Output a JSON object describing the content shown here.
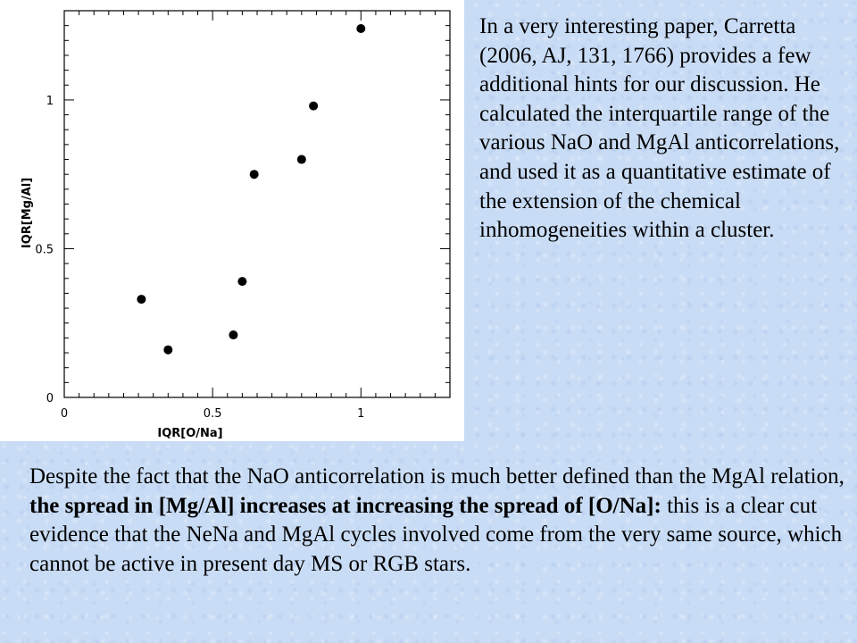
{
  "side_paragraph": "In a very interesting paper, Carretta (2006, AJ, 131, 1766) provides a few additional hints for our discussion.  He calculated the interquartile range of the various NaO and MgAl anticorrelations, and used it as a quantitative estimate of the extension of the chemical inhomogeneities within a cluster.",
  "bottom_paragraph": {
    "part1": "Despite the fact that the NaO anticorrelation is much better defined than the MgAl relation, ",
    "bold": "the spread in [Mg/Al] increases at increasing the spread of [O/Na]:",
    "part2": " this is a clear cut evidence that the NeNa and MgAl cycles involved come from the very same source, which cannot be active in present day MS or RGB stars."
  },
  "chart_data": {
    "type": "scatter",
    "xlabel": "IQR[O/Na]",
    "ylabel": "IQR[Mg/Al]",
    "xlim": [
      0,
      1.3
    ],
    "ylim": [
      0,
      1.3
    ],
    "x_ticks": [
      0,
      0.5,
      1
    ],
    "x_tick_labels": [
      "0",
      "0.5",
      "1"
    ],
    "y_ticks": [
      0,
      0.5,
      1
    ],
    "y_tick_labels": [
      "0",
      "0.5",
      "1"
    ],
    "grid": false,
    "points": [
      {
        "x": 0.26,
        "y": 0.33
      },
      {
        "x": 0.35,
        "y": 0.16
      },
      {
        "x": 0.57,
        "y": 0.21
      },
      {
        "x": 0.6,
        "y": 0.39
      },
      {
        "x": 0.64,
        "y": 0.75
      },
      {
        "x": 0.8,
        "y": 0.8
      },
      {
        "x": 0.84,
        "y": 0.98
      },
      {
        "x": 1.0,
        "y": 1.24
      }
    ]
  }
}
